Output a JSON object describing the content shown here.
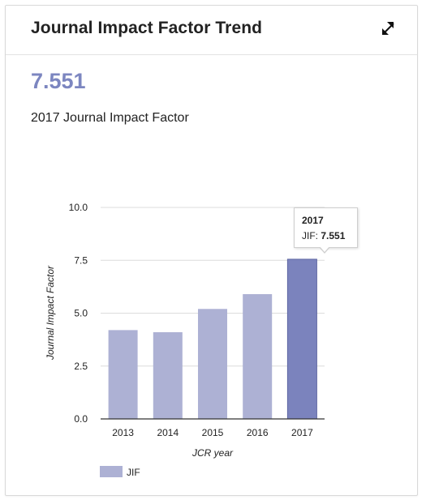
{
  "card": {
    "title": "Journal Impact Factor Trend",
    "expand_icon": "expand-arrows-icon"
  },
  "summary": {
    "value": "7.551",
    "label": "2017 Journal Impact Factor"
  },
  "colors": {
    "bar": "#adb1d4",
    "bar_highlight": "#7b83bd",
    "value_text": "#7c86c0"
  },
  "tooltip": {
    "year": "2017",
    "metric_label": "JIF: ",
    "value": "7.551"
  },
  "chart_data": {
    "type": "bar",
    "categories": [
      "2013",
      "2014",
      "2015",
      "2016",
      "2017"
    ],
    "series": [
      {
        "name": "JIF",
        "values": [
          4.2,
          4.1,
          5.2,
          5.9,
          7.551
        ]
      }
    ],
    "ylim": [
      0,
      10
    ],
    "yticks": [
      "0.0",
      "2.5",
      "5.0",
      "7.5",
      "10.0"
    ],
    "ytick_values": [
      0,
      2.5,
      5,
      7.5,
      10
    ],
    "xlabel": "JCR year",
    "ylabel": "Journal Impact Factor",
    "grid": true,
    "legend": "bottom-left",
    "highlighted_category": "2017"
  }
}
